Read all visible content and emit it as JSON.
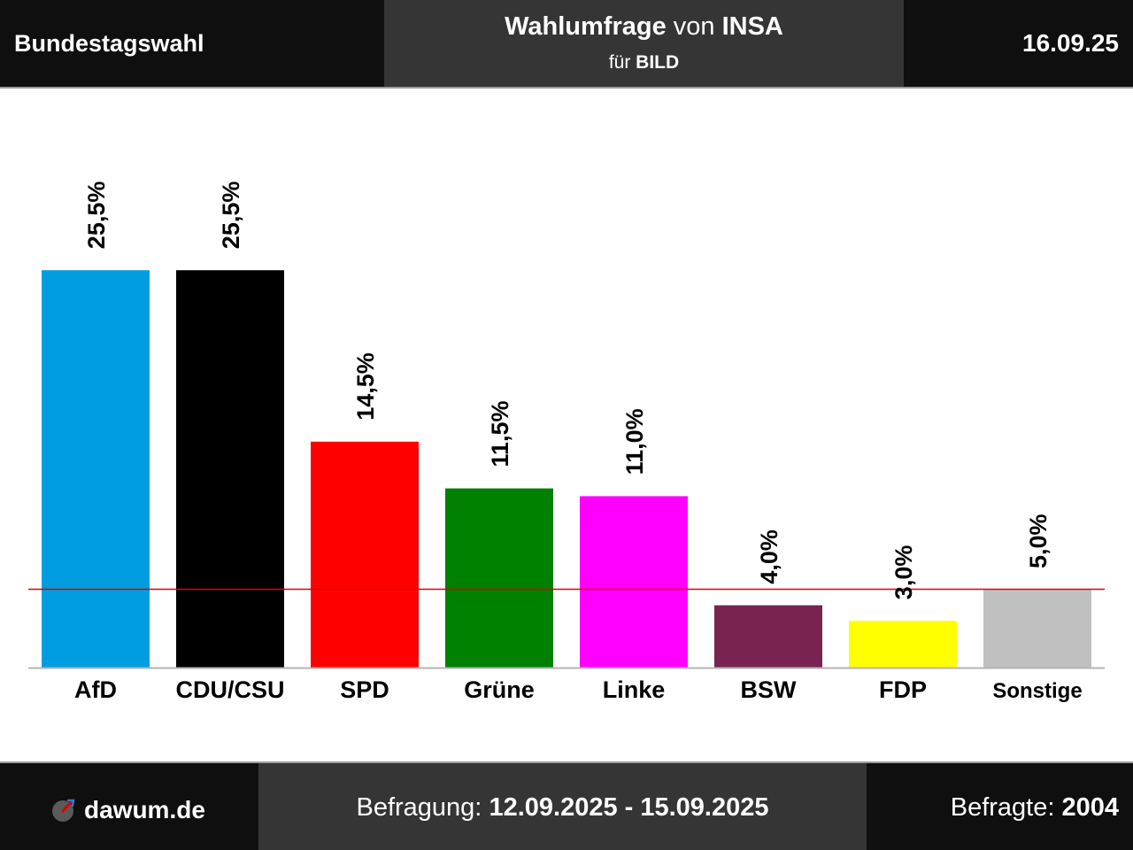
{
  "header": {
    "left": "Bundestagswahl",
    "title_main": "Wahlumfrage",
    "title_von": " von ",
    "title_institute": "INSA",
    "sub_fuer": "für ",
    "sub_client": "BILD",
    "date": "16.09.25"
  },
  "footer": {
    "brand": "dawum.de",
    "period_label": "Befragung: ",
    "period_value": "12.09.2025 - 15.09.2025",
    "respondents_label": "Befragte: ",
    "respondents_value": "2004"
  },
  "chart_data": {
    "type": "bar",
    "categories": [
      "AfD",
      "CDU/CSU",
      "SPD",
      "Grüne",
      "Linke",
      "BSW",
      "FDP",
      "Sonstige"
    ],
    "values": [
      25.5,
      25.5,
      14.5,
      11.5,
      11.0,
      4.0,
      3.0,
      5.0
    ],
    "value_labels": [
      "25,5%",
      "25,5%",
      "14,5%",
      "11,5%",
      "11,0%",
      "4,0%",
      "3,0%",
      "5,0%"
    ],
    "colors": [
      "#009ee0",
      "#000000",
      "#ff0000",
      "#008000",
      "#ff00ff",
      "#792351",
      "#ffff00",
      "#c0c0c0"
    ],
    "threshold": 5.0,
    "threshold_color": "#e00000",
    "title": "",
    "xlabel": "",
    "ylabel": "",
    "ylim": [
      0,
      30
    ],
    "grid": false,
    "legend": "none"
  }
}
